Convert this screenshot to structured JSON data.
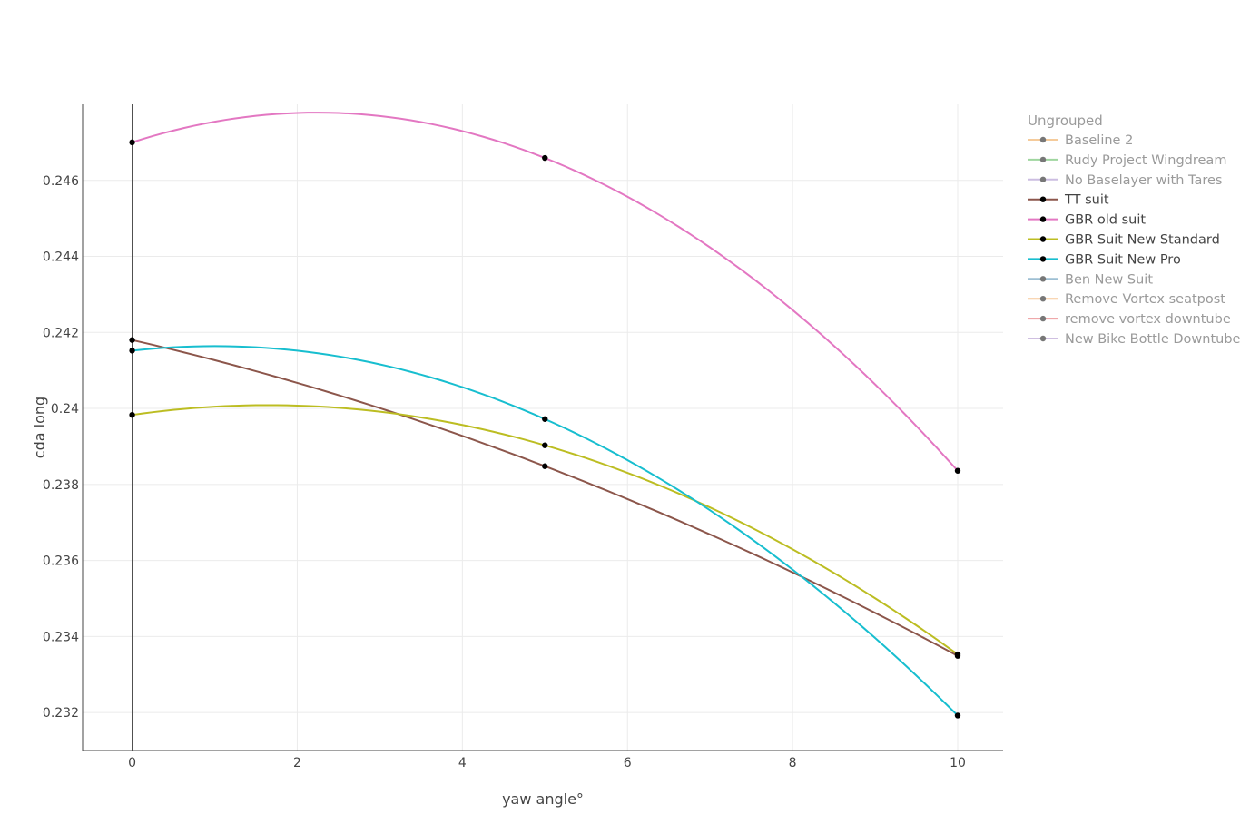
{
  "chart_data": {
    "type": "line",
    "title": "",
    "xlabel": "yaw angle°",
    "ylabel": "cda long",
    "xlim": [
      -0.6,
      10.55
    ],
    "ylim": [
      0.231,
      0.248
    ],
    "xticks": [
      0,
      2,
      4,
      6,
      8,
      10
    ],
    "xtick_labels": [
      "0",
      "2",
      "4",
      "6",
      "8",
      "10"
    ],
    "yticks": [
      0.232,
      0.234,
      0.236,
      0.238,
      0.24,
      0.242,
      0.244,
      0.246
    ],
    "ytick_labels": [
      "0.232",
      "0.234",
      "0.236",
      "0.238",
      "0.24",
      "0.242",
      "0.244",
      "0.246"
    ],
    "grid": true,
    "legend": {
      "position": "right",
      "title": "Ungrouped",
      "items": [
        {
          "name": "Baseline 2",
          "color": "#f4c28a",
          "active": false
        },
        {
          "name": "Rudy Project Wingdream",
          "color": "#8fcf8f",
          "active": false
        },
        {
          "name": "No Baselayer with Tares",
          "color": "#c4b2dc",
          "active": false
        },
        {
          "name": "TT suit",
          "color": "#8c564b",
          "active": true
        },
        {
          "name": "GBR old suit",
          "color": "#e377c2",
          "active": true
        },
        {
          "name": "GBR Suit New Standard",
          "color": "#bcbd22",
          "active": true
        },
        {
          "name": "GBR Suit New Pro",
          "color": "#17becf",
          "active": true
        },
        {
          "name": "Ben New Suit",
          "color": "#8cb4cc",
          "active": false
        },
        {
          "name": "Remove Vortex seatpost",
          "color": "#f6c08a",
          "active": false
        },
        {
          "name": "remove vortex downtube",
          "color": "#ea8a8e",
          "active": false
        },
        {
          "name": "New Bike Bottle Downtube",
          "color": "#c7b4dc",
          "active": false
        }
      ]
    },
    "series": [
      {
        "name": "TT suit",
        "color": "#8c564b",
        "x": [
          0,
          5,
          10
        ],
        "y": [
          0.2418,
          0.23848,
          0.23349
        ]
      },
      {
        "name": "GBR old suit",
        "color": "#e377c2",
        "x": [
          0,
          5,
          10
        ],
        "y": [
          0.247,
          0.24659,
          0.23836
        ]
      },
      {
        "name": "GBR Suit New Standard",
        "color": "#bcbd22",
        "x": [
          0,
          5,
          10
        ],
        "y": [
          0.23983,
          0.23903,
          0.23353
        ]
      },
      {
        "name": "GBR Suit New Pro",
        "color": "#17becf",
        "x": [
          0,
          5,
          10
        ],
        "y": [
          0.24152,
          0.23972,
          0.23192
        ]
      }
    ]
  }
}
